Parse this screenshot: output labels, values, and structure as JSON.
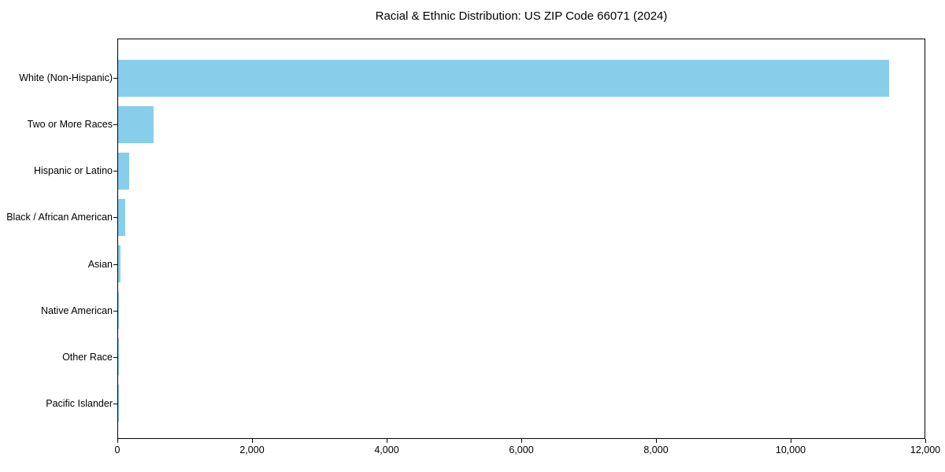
{
  "figure": {
    "background": "#ffffff",
    "text_color": "#000000"
  },
  "chart_data": {
    "type": "bar",
    "orientation": "horizontal",
    "title": "Racial & Ethnic Distribution: US ZIP Code 66071 (2024)",
    "categories": [
      "White (Non-Hispanic)",
      "Two or More Races",
      "Hispanic or Latino",
      "Black / African American",
      "Asian",
      "Native American",
      "Other Race",
      "Pacific Islander"
    ],
    "values": [
      11450,
      530,
      165,
      110,
      40,
      10,
      8,
      3
    ],
    "xlabel": "",
    "ylabel": "",
    "xlim": [
      0,
      12000
    ],
    "xtick_values": [
      0,
      2000,
      4000,
      6000,
      8000,
      10000,
      12000
    ],
    "xtick_labels": [
      "0",
      "2,000",
      "4,000",
      "6,000",
      "8,000",
      "10,000",
      "12,000"
    ],
    "bar_color": "#87CEEB",
    "grid": false,
    "legend": "none",
    "category_order": "largest value at top, y-axis inverted"
  }
}
